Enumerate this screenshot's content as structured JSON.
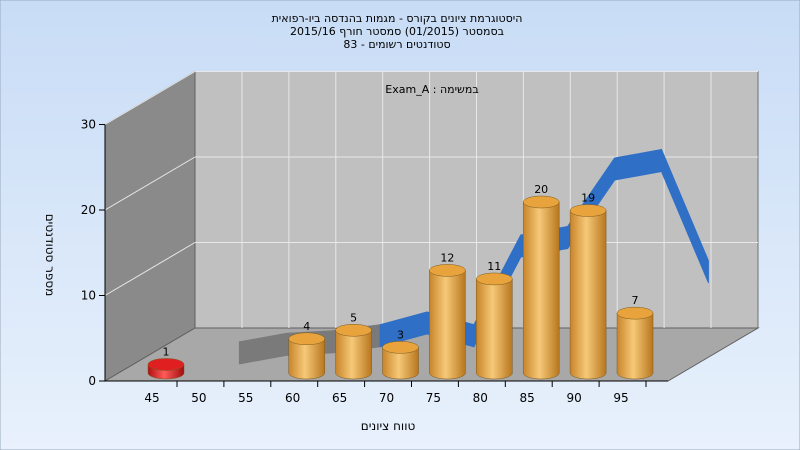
{
  "chart_data": {
    "type": "bar",
    "title_lines": [
      "היסטוגרמת ציונים בקורס - מגמות בהנדסה ביו-רפואית",
      "בסמסטר  (01/2015)  סמסטר חורף 2015/16",
      "סטודנטים רשומים - 83"
    ],
    "annotation": "Exam_A : במשימה",
    "xlabel": "טווח ציונים",
    "ylabel": "מספר סטודנטים",
    "x_ticks": [
      "45",
      "50",
      "55",
      "60",
      "65",
      "70",
      "75",
      "80",
      "85",
      "90",
      "95"
    ],
    "y_ticks": [
      "0",
      "10",
      "20",
      "30"
    ],
    "ylim": [
      0,
      30
    ],
    "grid": true,
    "bars": [
      {
        "x": 45,
        "value": 1,
        "label": "1",
        "color": "#e02020"
      },
      {
        "x": 60,
        "value": 4,
        "label": "4",
        "color": "#e8a33c"
      },
      {
        "x": 65,
        "value": 5,
        "label": "5",
        "color": "#e8a33c"
      },
      {
        "x": 70,
        "value": 3,
        "label": "3",
        "color": "#e8a33c"
      },
      {
        "x": 75,
        "value": 12,
        "label": "12",
        "color": "#e8a33c"
      },
      {
        "x": 80,
        "value": 11,
        "label": "11",
        "color": "#e8a33c"
      },
      {
        "x": 85,
        "value": 20,
        "label": "20",
        "color": "#e8a33c"
      },
      {
        "x": 90,
        "value": 19,
        "label": "19",
        "color": "#e8a33c"
      },
      {
        "x": 95,
        "value": 7,
        "label": "7",
        "color": "#e8a33c"
      }
    ],
    "trend_line": {
      "x": [
        50,
        55,
        60,
        65,
        70,
        75,
        80,
        85,
        90,
        95,
        100
      ],
      "y": [
        0.5,
        1.5,
        1.8,
        2.5,
        4.0,
        2.5,
        13.0,
        14.0,
        22.0,
        23.0,
        10.0
      ],
      "colors": {
        "low": "#7a7a7a",
        "high": "#2f6fc6"
      }
    },
    "colors": {
      "background_top": "#c8dcf6",
      "background_bottom": "#e8f1fc",
      "back_wall": "#c0c0c0",
      "side_wall": "#8a8a8a",
      "floor": "#a8a8a8",
      "gridline": "#e8e8e8"
    }
  }
}
